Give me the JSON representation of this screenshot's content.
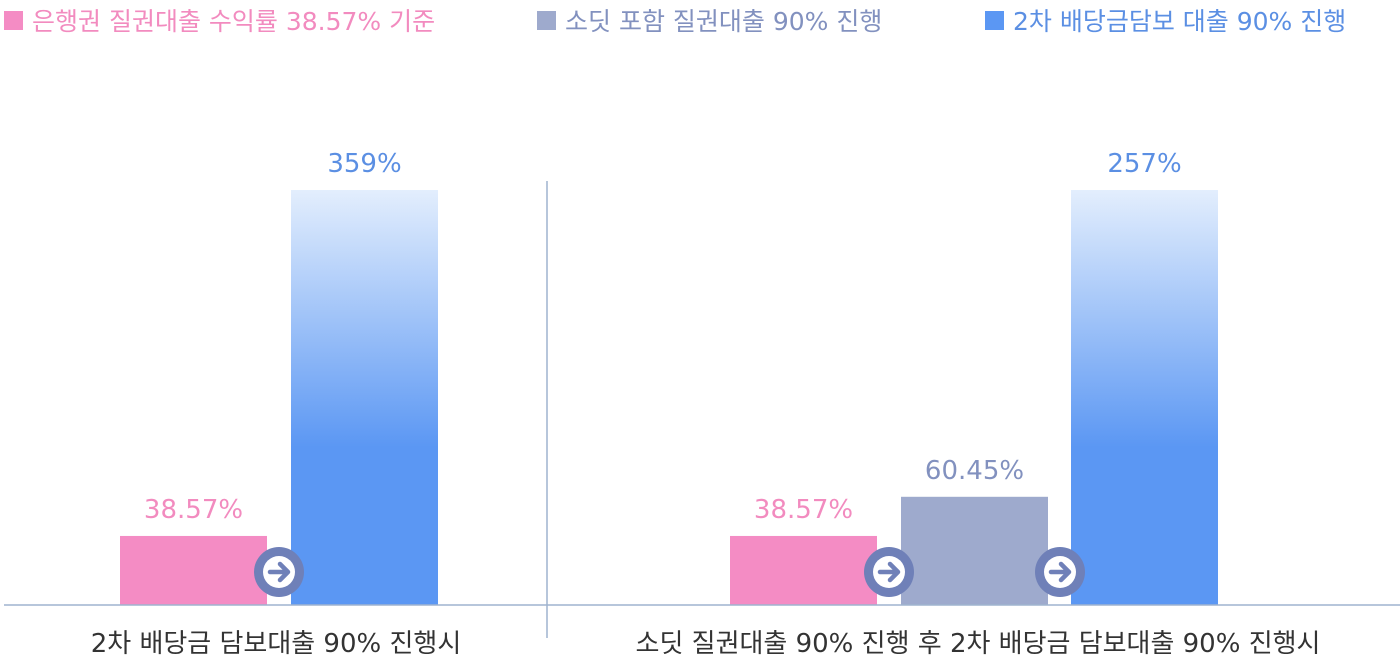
{
  "chart_data": {
    "type": "bar",
    "legend_position": "top",
    "grid": false,
    "colors": {
      "pink": "#f48cc4",
      "gray": "#9eaacd",
      "blue": "#5b97f3",
      "blue_light": "#e3eefd",
      "label_pink": "#f28bbf",
      "label_gray": "#8291bf",
      "label_blue": "#5b8fe3",
      "arrow": "#6f80b8",
      "axis": "#9fb4cf"
    },
    "legend": [
      {
        "name": "은행권 질권대출 수익률 38.57% 기준",
        "color": "#f48cc4"
      },
      {
        "name": "소딧 포함 질권대출 90% 진행",
        "color": "#9eaacd"
      },
      {
        "name": "2차 배당금담보 대출 90% 진행",
        "color": "#5b97f3"
      }
    ],
    "groups": [
      {
        "category": "2차 배당금 담보대출 90% 진행시",
        "bars": [
          {
            "series": 0,
            "value": 38.57,
            "label": "38.57%"
          },
          {
            "series": 2,
            "value": 359,
            "label": "359%"
          }
        ]
      },
      {
        "category": "소딧 질권대출 90% 진행 후 2차 배당금 담보대출 90% 진행시",
        "bars": [
          {
            "series": 0,
            "value": 38.57,
            "label": "38.57%"
          },
          {
            "series": 1,
            "value": 60.45,
            "label": "60.45%"
          },
          {
            "series": 2,
            "value": 257,
            "label": "257%"
          }
        ]
      }
    ]
  }
}
